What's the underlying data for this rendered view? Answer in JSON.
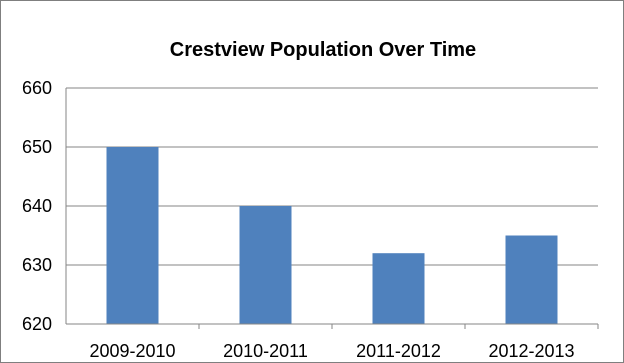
{
  "chart_data": {
    "type": "bar",
    "title": "Crestview Population Over Time",
    "xlabel": "",
    "ylabel": "",
    "categories": [
      "2009-2010",
      "2010-2011",
      "2011-2012",
      "2012-2013"
    ],
    "values": [
      650,
      640,
      632,
      635
    ],
    "ylim": [
      620,
      660
    ],
    "yticks": [
      "620",
      "630",
      "640",
      "650",
      "660"
    ],
    "grid": true,
    "legend": "none",
    "bar_color": "#4f81bd",
    "grid_color": "#868686"
  }
}
